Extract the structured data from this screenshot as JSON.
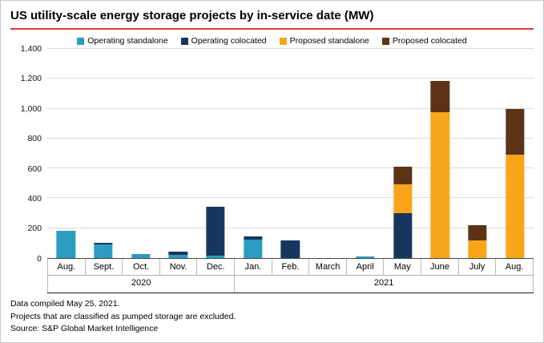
{
  "header": {
    "title": "US utility-scale energy storage projects by in-service date (MW)"
  },
  "colors": {
    "accent_line": "#e03a2f",
    "operating_standalone": "#2b9dc0",
    "operating_colocated": "#17375e",
    "proposed_standalone": "#f9a51a",
    "proposed_colocated": "#5c3317"
  },
  "chart_data": {
    "type": "bar",
    "stacked": true,
    "title": "US utility-scale energy storage projects by in-service date (MW)",
    "xlabel": "",
    "ylabel": "MW",
    "ylim": [
      0,
      1400
    ],
    "ytick_interval": 200,
    "grid": true,
    "legend_position": "top-center",
    "categories": [
      "Aug.",
      "Sept.",
      "Oct.",
      "Nov.",
      "Dec.",
      "Jan.",
      "Feb.",
      "March",
      "April",
      "May",
      "June",
      "July",
      "Aug."
    ],
    "year_groups": [
      {
        "label": "2020",
        "span": 5
      },
      {
        "label": "2021",
        "span": 8
      }
    ],
    "series": [
      {
        "name": "Operating standalone",
        "color": "#2b9dc0",
        "values": [
          180,
          90,
          25,
          20,
          15,
          120,
          0,
          0,
          10,
          0,
          0,
          0,
          0
        ]
      },
      {
        "name": "Operating colocated",
        "color": "#17375e",
        "values": [
          0,
          10,
          0,
          20,
          325,
          25,
          115,
          0,
          0,
          300,
          0,
          0,
          0
        ]
      },
      {
        "name": "Proposed standalone",
        "color": "#f9a51a",
        "values": [
          0,
          0,
          0,
          0,
          0,
          0,
          0,
          0,
          0,
          195,
          975,
          115,
          690
        ]
      },
      {
        "name": "Proposed colocated",
        "color": "#5c3317",
        "values": [
          0,
          0,
          0,
          0,
          0,
          0,
          0,
          0,
          0,
          115,
          210,
          105,
          310
        ]
      }
    ]
  },
  "footer": {
    "lines": [
      "Data compiled May 25, 2021.",
      "Projects that are classified as pumped storage are excluded.",
      "Source: S&P Global Market Intelligence"
    ]
  }
}
